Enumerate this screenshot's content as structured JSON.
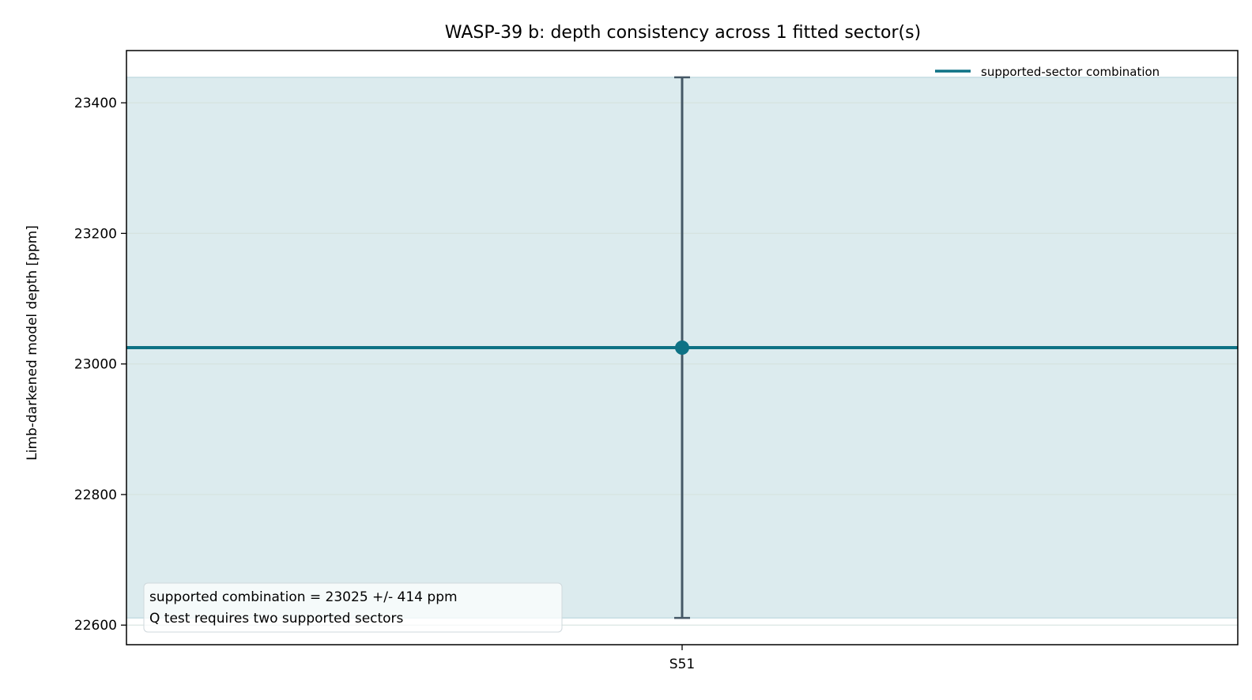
{
  "chart_data": {
    "type": "scatter",
    "title": "WASP-39 b: depth consistency across 1 fitted sector(s)",
    "xlabel": "",
    "ylabel": "Limb-darkened model depth [ppm]",
    "categories": [
      "S51"
    ],
    "points": [
      {
        "category": "S51",
        "value": 23025,
        "error": 414
      }
    ],
    "combined": {
      "name": "supported-sector combination",
      "value": 23025,
      "error": 414
    },
    "ylim": [
      22570,
      23480
    ],
    "yticks": [
      22600,
      22800,
      23000,
      23200,
      23400
    ],
    "grid": true,
    "legend": "top-right",
    "annotation": [
      "supported combination = 23025 +/- 414 ppm",
      "Q test requires two supported sectors"
    ],
    "colors": {
      "combination": "#0e7285",
      "band": "#dcebee",
      "errorbar": "#455866",
      "grid": "#d6e3df"
    }
  }
}
